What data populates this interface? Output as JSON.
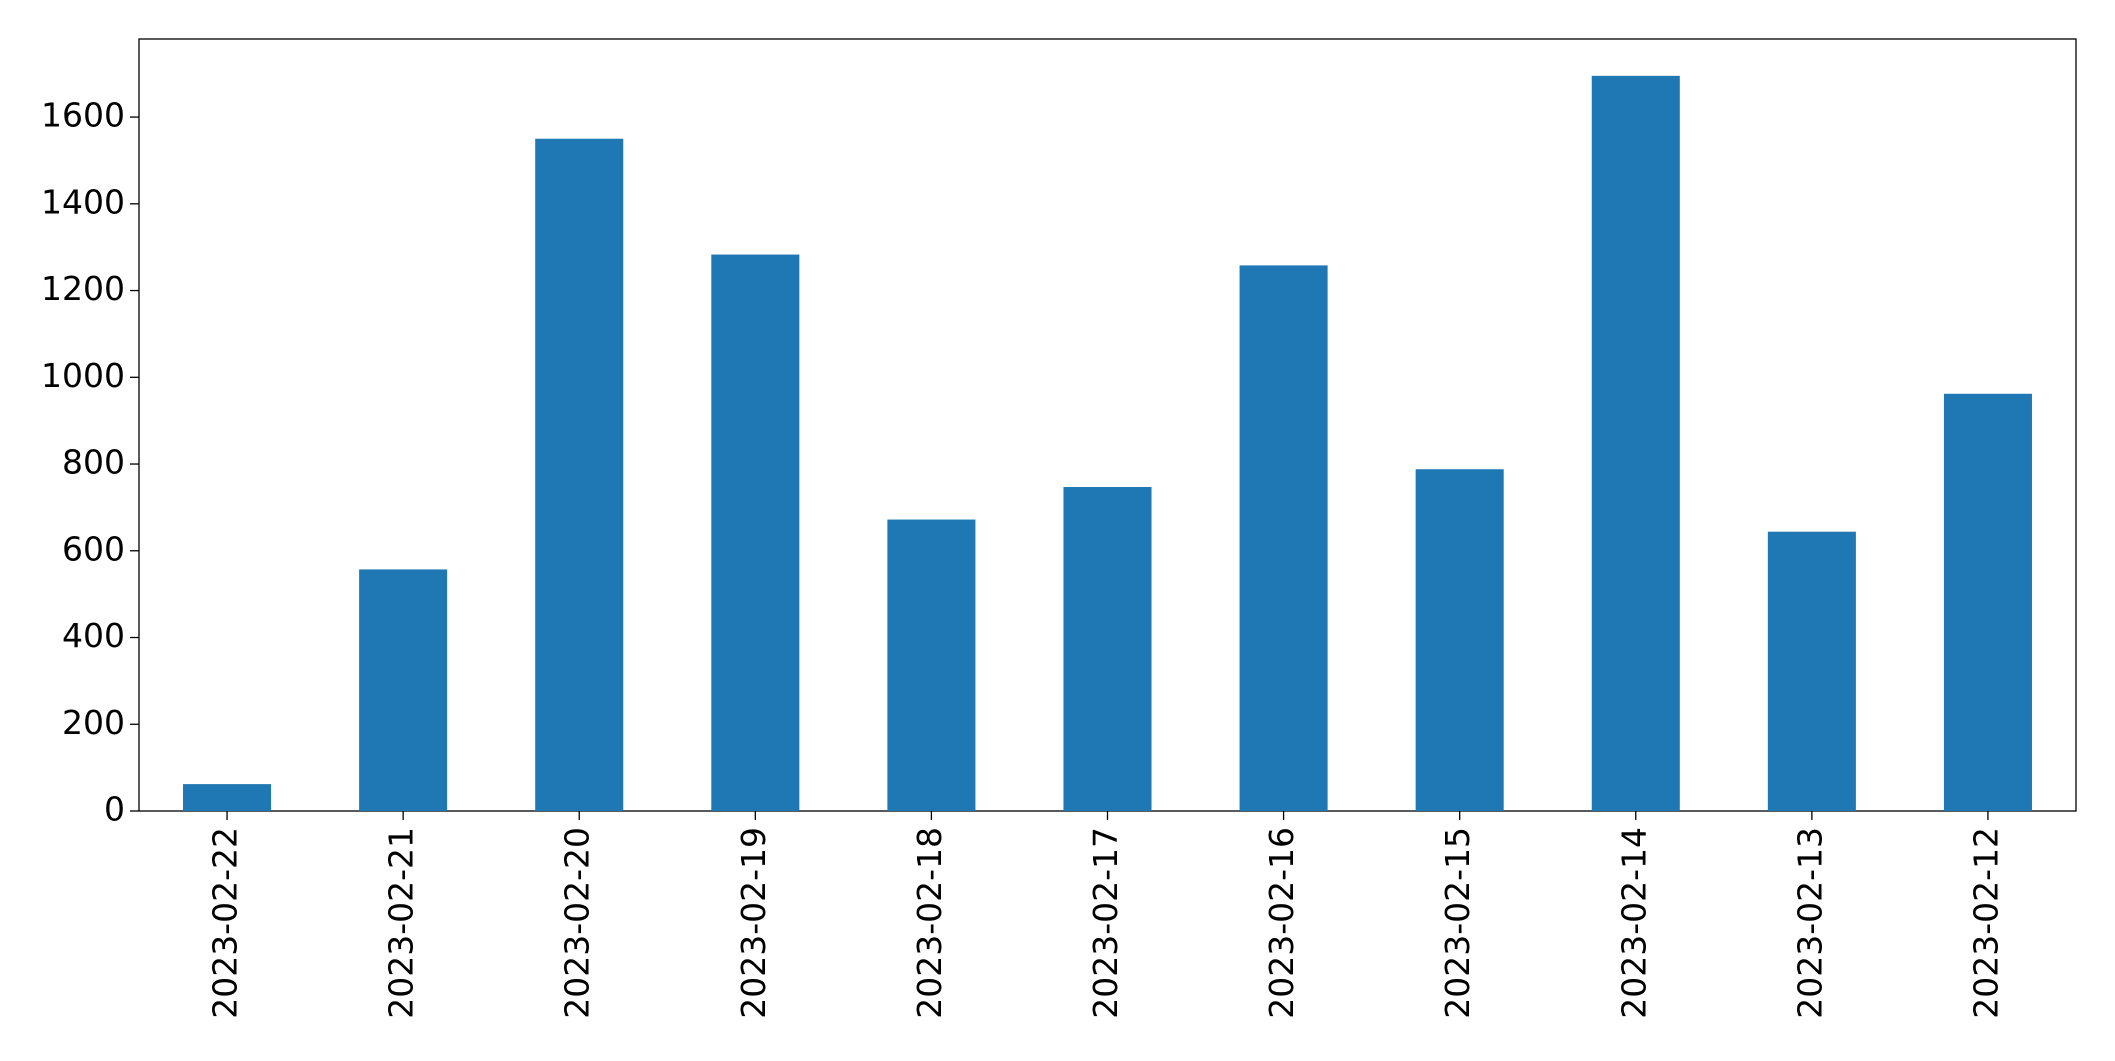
{
  "chart_data": {
    "type": "bar",
    "categories": [
      "2023-02-22",
      "2023-02-21",
      "2023-02-20",
      "2023-02-19",
      "2023-02-18",
      "2023-02-17",
      "2023-02-16",
      "2023-02-15",
      "2023-02-14",
      "2023-02-13",
      "2023-02-12"
    ],
    "values": [
      62,
      557,
      1550,
      1283,
      672,
      747,
      1258,
      788,
      1695,
      644,
      962
    ],
    "color": "#1f77b4",
    "ylim": [
      0,
      1780
    ],
    "yticks": [
      0,
      200,
      400,
      600,
      800,
      1000,
      1200,
      1400,
      1600
    ],
    "grid": false
  }
}
